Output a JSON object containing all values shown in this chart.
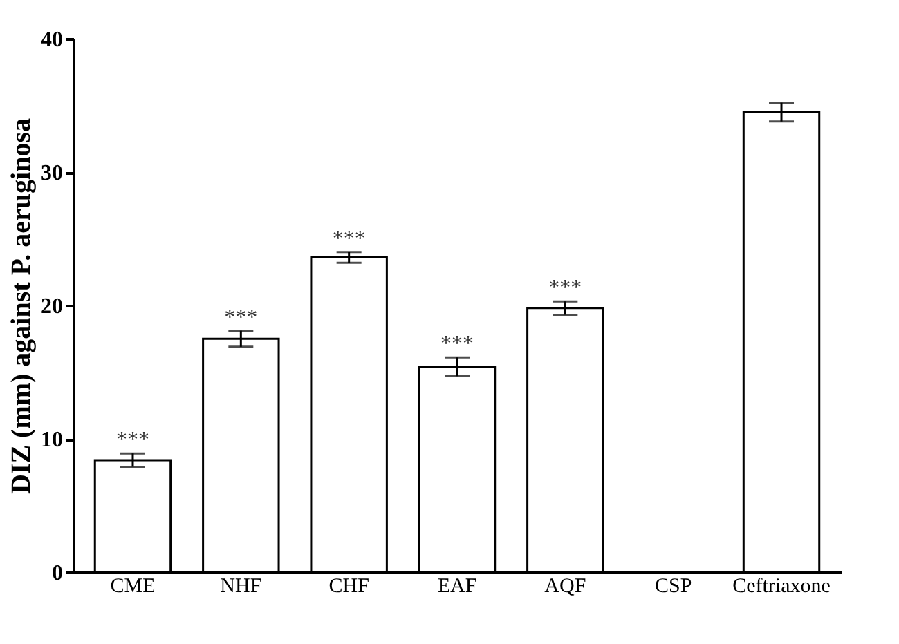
{
  "chart_data": {
    "type": "bar",
    "ylabel": "DIZ (mm) against P. aeruginosa",
    "categories": [
      "CME",
      "NHF",
      "CHF",
      "EAF",
      "AQF",
      "CSP",
      "Ceftriaxone"
    ],
    "values": [
      8.4,
      17.5,
      23.6,
      15.4,
      19.8,
      null,
      34.5
    ],
    "errors": [
      0.5,
      0.6,
      0.4,
      0.7,
      0.5,
      null,
      0.7
    ],
    "color": "#ffffff",
    "ylim": [
      0,
      40
    ],
    "yticks": [
      0,
      10,
      20,
      30,
      40
    ],
    "grid": false,
    "annotations": [
      {
        "text": "***",
        "x": "CME",
        "y": 8.9
      },
      {
        "text": "***",
        "x": "NHF",
        "y": 18.1
      },
      {
        "text": "***",
        "x": "CHF",
        "y": 24.0
      },
      {
        "text": "***",
        "x": "EAF",
        "y": 16.1
      },
      {
        "text": "***",
        "x": "AQF",
        "y": 20.3
      }
    ]
  }
}
